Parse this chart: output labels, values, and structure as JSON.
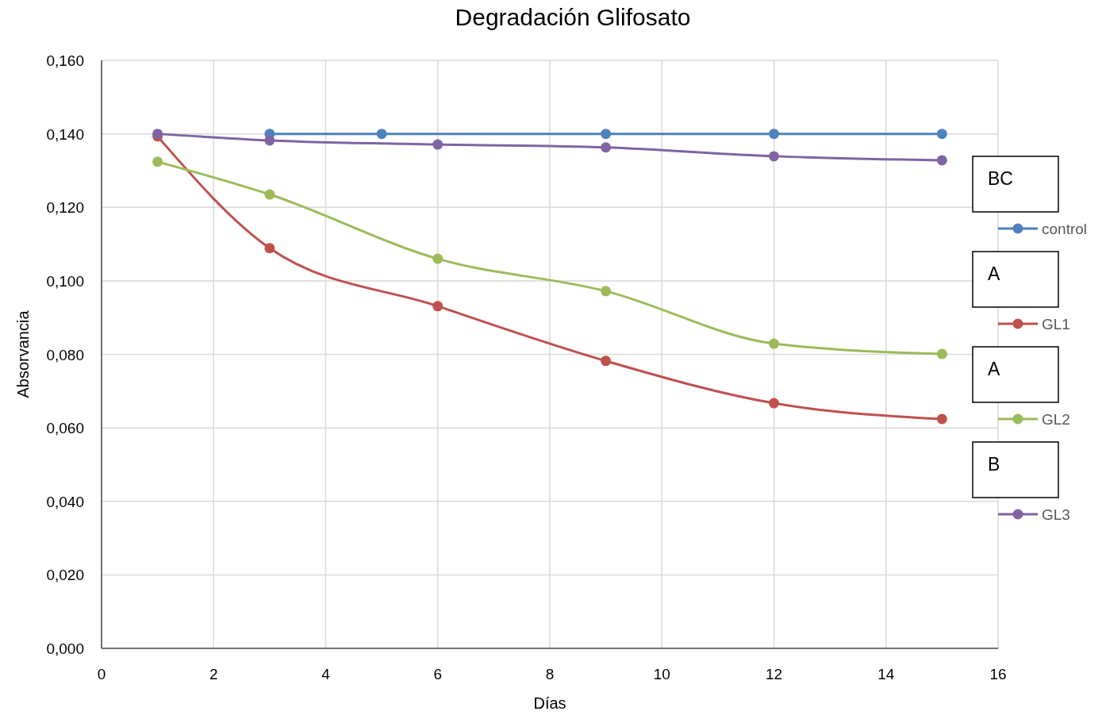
{
  "chart_data": {
    "type": "line",
    "title": "Degradación Glifosato",
    "xlabel": "Días",
    "ylabel": "Absorvancia",
    "xlim": [
      0,
      16
    ],
    "xticks": [
      0,
      2,
      4,
      6,
      8,
      10,
      12,
      14,
      16
    ],
    "ylim": [
      0,
      0.16
    ],
    "yticks": [
      {
        "value": 0,
        "label": "0,000"
      },
      {
        "value": 0.02,
        "label": "0,020"
      },
      {
        "value": 0.04,
        "label": "0,040"
      },
      {
        "value": 0.06,
        "label": "0,060"
      },
      {
        "value": 0.08,
        "label": "0,080"
      },
      {
        "value": 0.1,
        "label": "0,100"
      },
      {
        "value": 0.12,
        "label": "0,120"
      },
      {
        "value": 0.14,
        "label": "0,140"
      },
      {
        "value": 0.16,
        "label": "0,160"
      }
    ],
    "grid": true,
    "legend": "right",
    "marker": "circle",
    "line_style": "solid",
    "series": [
      {
        "name": "control",
        "color": "#4f81bd",
        "x": [
          3,
          5,
          9,
          12,
          15
        ],
        "values": [
          0.14,
          0.14,
          0.14,
          0.14,
          0.14
        ]
      },
      {
        "name": "GL1",
        "color": "#c0504d",
        "x": [
          1,
          3,
          6,
          9,
          12,
          15
        ],
        "values": [
          0.1393,
          0.1089,
          0.0931,
          0.0782,
          0.0667,
          0.0624
        ]
      },
      {
        "name": "GL2",
        "color": "#9bbb59",
        "x": [
          1,
          3,
          6,
          9,
          12,
          15
        ],
        "values": [
          0.1324,
          0.1235,
          0.106,
          0.0972,
          0.0829,
          0.0801
        ]
      },
      {
        "name": "GL3",
        "color": "#8064a2",
        "x": [
          1,
          3,
          6,
          9,
          12,
          15
        ],
        "values": [
          0.14,
          0.1382,
          0.1371,
          0.1363,
          0.1339,
          0.1328
        ]
      }
    ],
    "annotations": [
      "BC",
      "A",
      "A",
      "B"
    ]
  }
}
